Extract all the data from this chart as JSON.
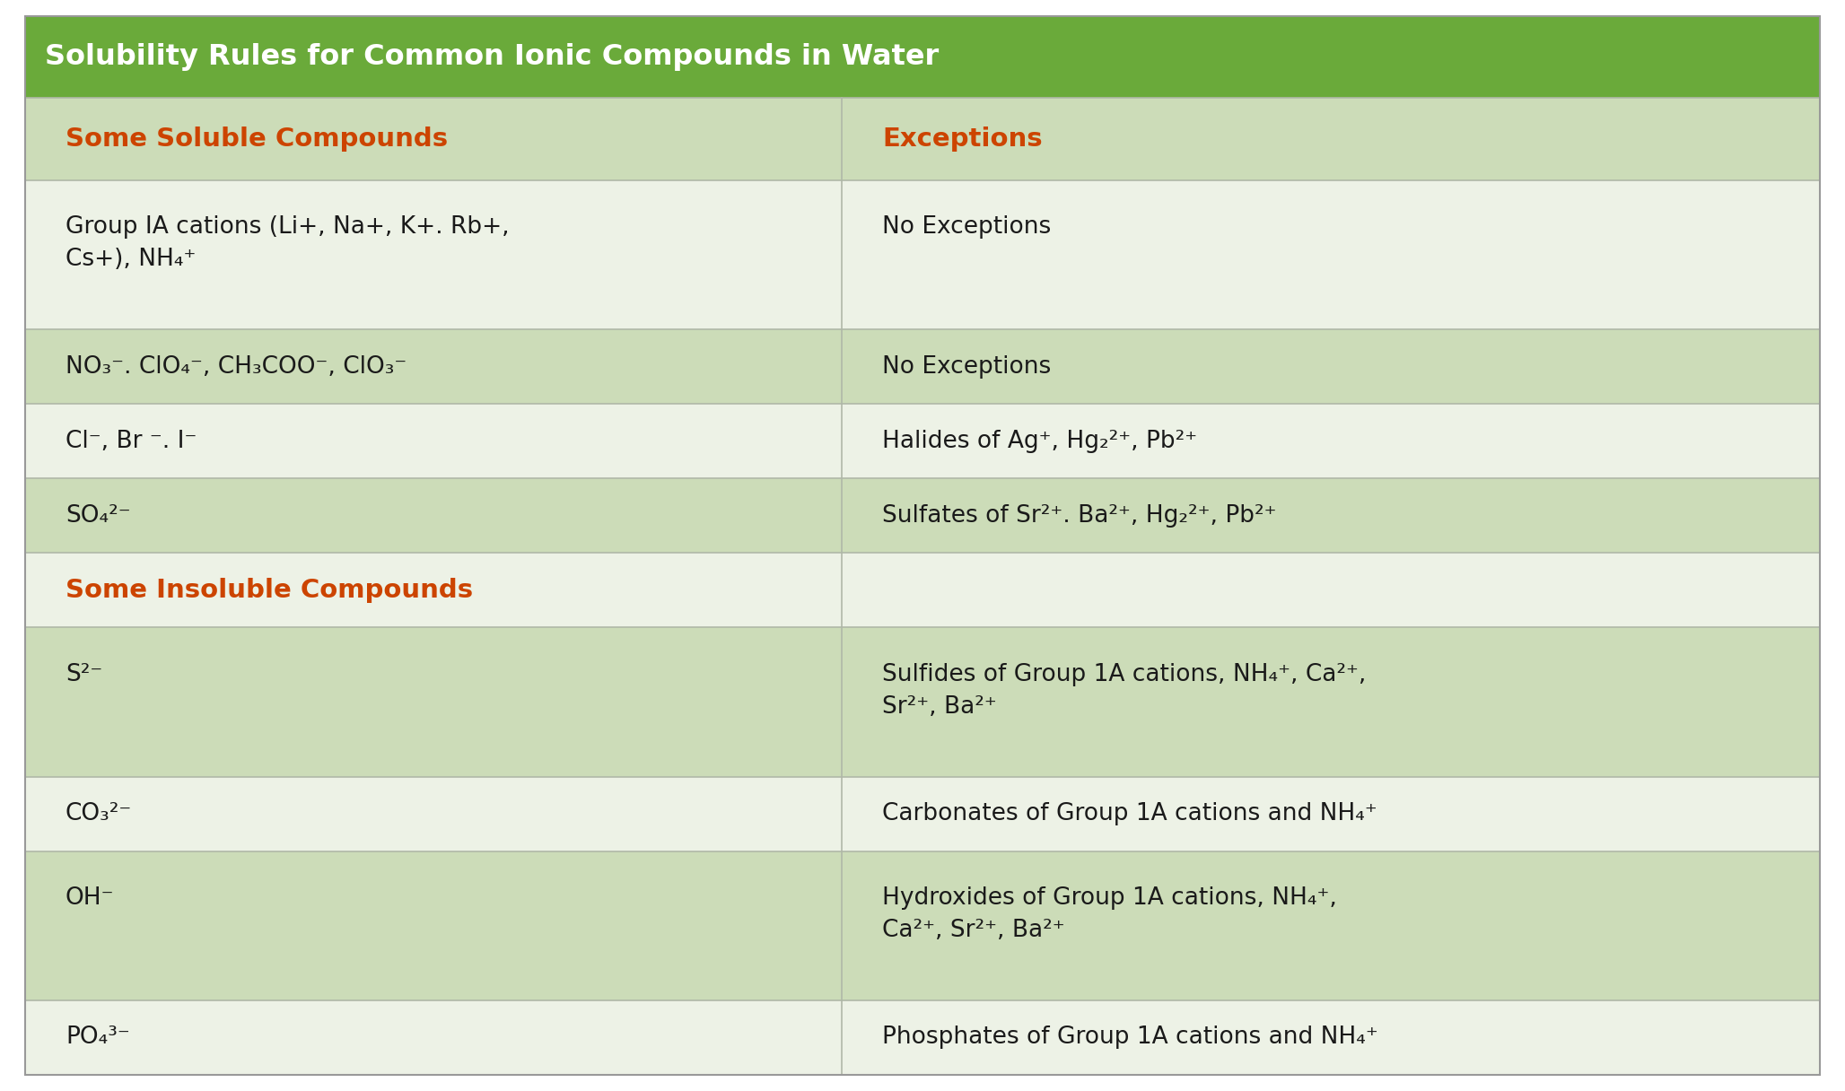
{
  "title": "Solubility Rules for Common Ionic Compounds in Water",
  "title_bg": "#6aaa3a",
  "title_color": "#ffffff",
  "header_bg": "#ccdcb8",
  "header_color": "#cc4400",
  "row_bg_light": "#edf2e6",
  "row_bg_dark": "#ccdcb8",
  "section_color": "#cc4400",
  "text_color": "#1a1a1a",
  "border_color": "#b0b8a8",
  "fig_bg": "#ffffff",
  "col_split": 0.455,
  "title_fontsize": 23,
  "header_fontsize": 21,
  "data_fontsize": 19,
  "rows": [
    {
      "type": "title",
      "col1": "Solubility Rules for Common Ionic Compounds in Water",
      "col2": "",
      "bg": "#6aaa3a",
      "units": 1.1
    },
    {
      "type": "header",
      "col1": "Some Soluble Compounds",
      "col2": "Exceptions",
      "bg": "#ccdcb8",
      "units": 1.1
    },
    {
      "type": "data",
      "col1": "Group IA cations (Li+, Na+, K+. Rb+,\nCs+), NH₄⁺",
      "col2": "No Exceptions",
      "bg": "#edf2e6",
      "units": 2.0
    },
    {
      "type": "data",
      "col1": "NO₃⁻. ClO₄⁻, CH₃COO⁻, ClO₃⁻",
      "col2": "No Exceptions",
      "bg": "#ccdcb8",
      "units": 1.0
    },
    {
      "type": "data",
      "col1": "Cl⁻, Br ⁻. I⁻",
      "col2": "Halides of Ag⁺, Hg₂²⁺, Pb²⁺",
      "bg": "#edf2e6",
      "units": 1.0
    },
    {
      "type": "data",
      "col1": "SO₄²⁻",
      "col2": "Sulfates of Sr²⁺. Ba²⁺, Hg₂²⁺, Pb²⁺",
      "bg": "#ccdcb8",
      "units": 1.0
    },
    {
      "type": "section",
      "col1": "Some Insoluble Compounds",
      "col2": "",
      "bg": "#edf2e6",
      "units": 1.0
    },
    {
      "type": "data",
      "col1": "S²⁻",
      "col2": "Sulfides of Group 1A cations, NH₄⁺, Ca²⁺,\nSr²⁺, Ba²⁺",
      "bg": "#ccdcb8",
      "units": 2.0
    },
    {
      "type": "data",
      "col1": "CO₃²⁻",
      "col2": "Carbonates of Group 1A cations and NH₄⁺",
      "bg": "#edf2e6",
      "units": 1.0
    },
    {
      "type": "data",
      "col1": "OH⁻",
      "col2": "Hydroxides of Group 1A cations, NH₄⁺,\nCa²⁺, Sr²⁺, Ba²⁺",
      "bg": "#ccdcb8",
      "units": 2.0
    },
    {
      "type": "data",
      "col1": "PO₄³⁻",
      "col2": "Phosphates of Group 1A cations and NH₄⁺",
      "bg": "#edf2e6",
      "units": 1.0
    }
  ]
}
